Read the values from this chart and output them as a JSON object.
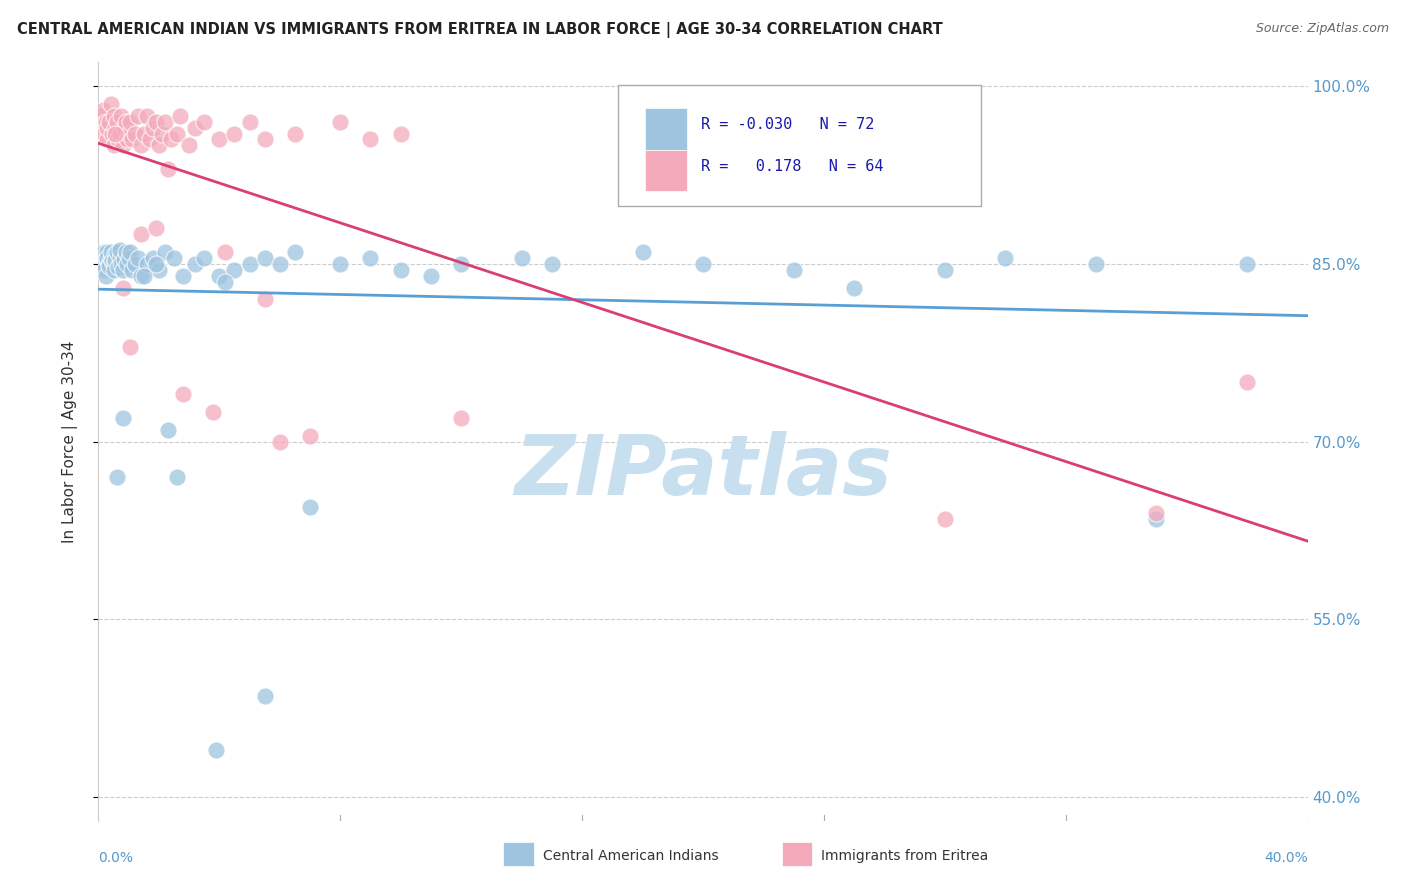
{
  "title": "CENTRAL AMERICAN INDIAN VS IMMIGRANTS FROM ERITREA IN LABOR FORCE | AGE 30-34 CORRELATION CHART",
  "source": "Source: ZipAtlas.com",
  "ylabel": "In Labor Force | Age 30-34",
  "yticks": [
    40.0,
    55.0,
    70.0,
    85.0,
    100.0
  ],
  "ytick_labels": [
    "40.0%",
    "55.0%",
    "70.0%",
    "85.0%",
    "100.0%"
  ],
  "xlim": [
    0.0,
    40.0
  ],
  "ylim": [
    38.0,
    102.0
  ],
  "blue_R": -0.03,
  "blue_N": 72,
  "pink_R": 0.178,
  "pink_N": 64,
  "blue_color": "#9ec4e0",
  "pink_color": "#f4aabb",
  "blue_line_color": "#5a9fd4",
  "pink_line_color": "#d94070",
  "legend_label_blue": "Central American Indians",
  "legend_label_pink": "Immigrants from Eritrea",
  "watermark": "ZIPatlas",
  "watermark_color": "#c8dff0",
  "background_color": "#ffffff",
  "blue_scatter_x": [
    0.1,
    0.15,
    0.2,
    0.2,
    0.25,
    0.25,
    0.3,
    0.3,
    0.35,
    0.35,
    0.4,
    0.4,
    0.45,
    0.5,
    0.5,
    0.55,
    0.55,
    0.6,
    0.65,
    0.7,
    0.7,
    0.75,
    0.8,
    0.85,
    0.9,
    0.95,
    1.0,
    1.05,
    1.1,
    1.2,
    1.3,
    1.4,
    1.6,
    1.8,
    2.0,
    2.2,
    2.5,
    2.8,
    3.2,
    3.5,
    4.0,
    4.5,
    5.0,
    5.5,
    6.5,
    7.0,
    8.0,
    9.0,
    10.0,
    11.0,
    12.0,
    14.0,
    15.0,
    18.0,
    20.0,
    23.0,
    25.0,
    28.0,
    30.0,
    33.0,
    35.0,
    0.6,
    1.5,
    2.3,
    3.9,
    5.5,
    0.8,
    1.9,
    2.6,
    6.0,
    4.2,
    38.0
  ],
  "blue_scatter_y": [
    85.5,
    85.0,
    86.0,
    84.5,
    85.5,
    84.0,
    86.0,
    85.5,
    85.0,
    84.8,
    85.5,
    86.0,
    85.2,
    85.0,
    84.5,
    85.8,
    85.3,
    86.0,
    84.7,
    85.5,
    86.2,
    85.0,
    84.5,
    85.4,
    86.0,
    85.0,
    85.5,
    86.0,
    84.5,
    85.0,
    85.5,
    84.0,
    85.0,
    85.5,
    84.5,
    86.0,
    85.5,
    84.0,
    85.0,
    85.5,
    84.0,
    84.5,
    85.0,
    85.5,
    86.0,
    64.5,
    85.0,
    85.5,
    84.5,
    84.0,
    85.0,
    85.5,
    85.0,
    86.0,
    85.0,
    84.5,
    83.0,
    84.5,
    85.5,
    85.0,
    63.5,
    67.0,
    84.0,
    71.0,
    44.0,
    48.5,
    72.0,
    85.0,
    67.0,
    85.0,
    83.5,
    85.0
  ],
  "pink_scatter_x": [
    0.1,
    0.15,
    0.2,
    0.25,
    0.3,
    0.3,
    0.35,
    0.4,
    0.45,
    0.5,
    0.5,
    0.55,
    0.6,
    0.65,
    0.7,
    0.75,
    0.8,
    0.85,
    0.9,
    0.95,
    1.0,
    1.05,
    1.1,
    1.2,
    1.3,
    1.4,
    1.5,
    1.6,
    1.7,
    1.8,
    1.9,
    2.0,
    2.1,
    2.2,
    2.4,
    2.6,
    2.7,
    3.0,
    3.2,
    3.5,
    4.0,
    4.5,
    5.0,
    5.5,
    6.0,
    6.5,
    7.0,
    8.0,
    9.0,
    10.0,
    12.0,
    0.55,
    0.8,
    1.05,
    1.4,
    1.9,
    2.3,
    2.8,
    3.8,
    4.2,
    5.5,
    28.0,
    35.0,
    38.0
  ],
  "pink_scatter_y": [
    97.5,
    98.0,
    96.0,
    97.0,
    95.5,
    96.5,
    97.0,
    98.5,
    96.0,
    97.5,
    95.0,
    96.5,
    97.0,
    95.5,
    96.0,
    97.5,
    95.0,
    96.5,
    97.0,
    95.5,
    96.0,
    97.0,
    95.5,
    96.0,
    97.5,
    95.0,
    96.0,
    97.5,
    95.5,
    96.5,
    97.0,
    95.0,
    96.0,
    97.0,
    95.5,
    96.0,
    97.5,
    95.0,
    96.5,
    97.0,
    95.5,
    96.0,
    97.0,
    95.5,
    70.0,
    96.0,
    70.5,
    97.0,
    95.5,
    96.0,
    72.0,
    96.0,
    83.0,
    78.0,
    87.5,
    88.0,
    93.0,
    74.0,
    72.5,
    86.0,
    82.0,
    63.5,
    64.0,
    75.0
  ]
}
